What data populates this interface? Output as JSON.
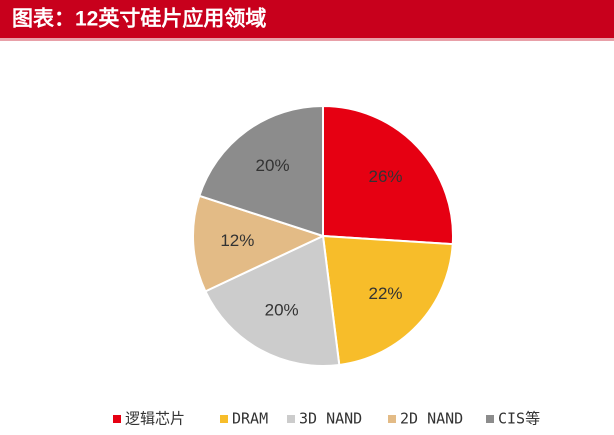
{
  "chart_data": {
    "type": "pie",
    "title": "图表：12英寸硅片应用领域",
    "categories": [
      "逻辑芯片",
      "DRAM",
      "3D NAND",
      "2D NAND",
      "CIS等"
    ],
    "values": [
      26,
      22,
      20,
      12,
      20
    ],
    "value_labels": [
      "26%",
      "22%",
      "20%",
      "12%",
      "20%"
    ],
    "colors": [
      "#e60012",
      "#f7bd2a",
      "#cccccc",
      "#e3bb86",
      "#8c8c8c"
    ],
    "legend": "bottom"
  }
}
